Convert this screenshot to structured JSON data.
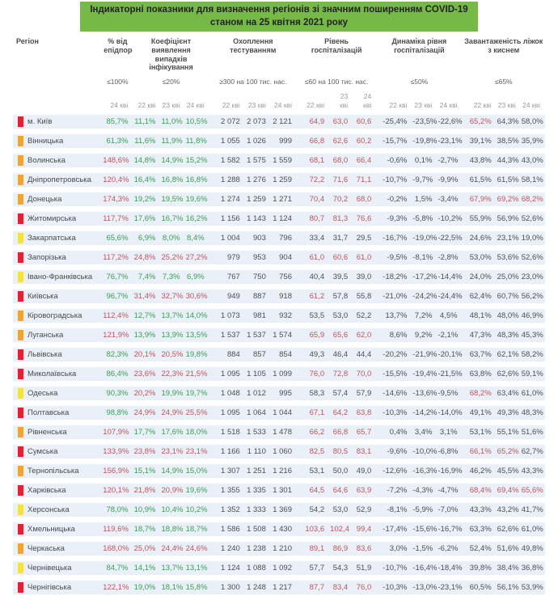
{
  "chart_data": {
    "type": "table",
    "title_line1": "Індикаторні показники для визначення регіонів зі значним поширенням COVID-19",
    "title_line2": "станом на 25 квітня 2021 року",
    "region_header": "Регіон",
    "groups": [
      {
        "key": "epid",
        "name": "% від епідпорогу",
        "threshold": "≤100%",
        "dates": [
          "24 кві"
        ]
      },
      {
        "key": "detect",
        "name": "Коефіцієнт виявлення випадків інфікування",
        "threshold": "≤20%",
        "dates": [
          "22 кві",
          "23 кві",
          "24 кві"
        ]
      },
      {
        "key": "testing",
        "name": "Охоплення тестуванням",
        "threshold": "≥300 на 100 тис. нас.",
        "dates": [
          "22 кві",
          "23 кві",
          "24 кві"
        ]
      },
      {
        "key": "hosp",
        "name": "Рівень госпіталізацій",
        "threshold": "≤60 на 100 тис. нас.",
        "dates": [
          "22 кві",
          "23 кві",
          "24 кві"
        ]
      },
      {
        "key": "dynamics",
        "name": "Динаміка рівня госпіталізацій",
        "threshold": "≤50%",
        "dates": [
          "22 кві",
          "23 кві",
          "24 кві"
        ]
      },
      {
        "key": "beds",
        "name": "Завантаженість ліжок з киснем",
        "threshold": "≤65%",
        "dates": [
          "22 кві",
          "23 кві",
          "24 кві"
        ]
      }
    ],
    "thresholds": {
      "epid": 100,
      "detect": 20,
      "hosp": 60,
      "beds": 65
    },
    "colors": {
      "green_value": "#3a9e52",
      "red_value": "#c4535c",
      "dark_value": "#4f4f4f",
      "marker_red": "#d9272e",
      "marker_orange": "#f2a33c",
      "marker_yellow": "#f5e04a",
      "stripe": "#e9f0f8",
      "title_bg": "#76b947"
    },
    "rows": [
      {
        "region": "м. Київ",
        "marker": "red",
        "epid": "85,7%",
        "detect": [
          "11,1%",
          "11,0%",
          "10,5%"
        ],
        "testing": [
          "2 072",
          "2 073",
          "2 121"
        ],
        "hosp": [
          "64,9",
          "63,0",
          "60,6"
        ],
        "dynamics": [
          "-25,4%",
          "-23,5%",
          "-22,6%"
        ],
        "beds": [
          "65,2%",
          "64,3%",
          "58,0%"
        ]
      },
      {
        "region": "Вінницька",
        "marker": "orange",
        "epid": "61,3%",
        "detect": [
          "11,6%",
          "11,9%",
          "11,8%"
        ],
        "testing": [
          "1 055",
          "1 026",
          "999"
        ],
        "hosp": [
          "66,8",
          "62,6",
          "60,2"
        ],
        "dynamics": [
          "-15,7%",
          "-19,8%",
          "-23,1%"
        ],
        "beds": [
          "39,1%",
          "38,5%",
          "35,9%"
        ]
      },
      {
        "region": "Волинська",
        "marker": "orange",
        "epid": "148,6%",
        "detect": [
          "14,8%",
          "14,9%",
          "15,2%"
        ],
        "testing": [
          "1 582",
          "1 575",
          "1 559"
        ],
        "hosp": [
          "68,1",
          "68,0",
          "66,4"
        ],
        "dynamics": [
          "-0,6%",
          "0,1%",
          "-2,7%"
        ],
        "beds": [
          "43,8%",
          "44,3%",
          "43,0%"
        ]
      },
      {
        "region": "Дніпропетровська",
        "marker": "orange",
        "epid": "120,4%",
        "detect": [
          "16,4%",
          "16,8%",
          "16,8%"
        ],
        "testing": [
          "1 288",
          "1 276",
          "1 259"
        ],
        "hosp": [
          "72,2",
          "71,6",
          "71,1"
        ],
        "dynamics": [
          "-10,7%",
          "-9,7%",
          "-9,9%"
        ],
        "beds": [
          "61,5%",
          "61,5%",
          "58,1%"
        ]
      },
      {
        "region": "Донецька",
        "marker": "orange",
        "epid": "174,3%",
        "detect": [
          "19,2%",
          "19,5%",
          "19,6%"
        ],
        "testing": [
          "1 274",
          "1 259",
          "1 271"
        ],
        "hosp": [
          "70,4",
          "70,2",
          "68,0"
        ],
        "dynamics": [
          "-0,2%",
          "1,5%",
          "-3,4%"
        ],
        "beds": [
          "67,9%",
          "69,2%",
          "68,2%"
        ]
      },
      {
        "region": "Житомирська",
        "marker": "red",
        "epid": "117,7%",
        "detect": [
          "17,6%",
          "16,7%",
          "16,2%"
        ],
        "testing": [
          "1 156",
          "1 143",
          "1 124"
        ],
        "hosp": [
          "80,7",
          "81,3",
          "76,6"
        ],
        "dynamics": [
          "-9,3%",
          "-5,8%",
          "-10,2%"
        ],
        "beds": [
          "55,9%",
          "56,9%",
          "52,6%"
        ]
      },
      {
        "region": "Закарпатська",
        "marker": "yellow",
        "epid": "65,6%",
        "detect": [
          "6,9%",
          "8,0%",
          "8,4%"
        ],
        "testing": [
          "1 004",
          "903",
          "796"
        ],
        "hosp": [
          "33,4",
          "31,7",
          "29,5"
        ],
        "dynamics": [
          "-16,7%",
          "-19,0%",
          "-22,5%"
        ],
        "beds": [
          "24,6%",
          "23,1%",
          "19,0%"
        ]
      },
      {
        "region": "Запорізька",
        "marker": "red",
        "epid": "117,2%",
        "detect": [
          "24,8%",
          "25,2%",
          "27,2%"
        ],
        "testing": [
          "979",
          "953",
          "904"
        ],
        "hosp": [
          "61,0",
          "60,6",
          "61,0"
        ],
        "dynamics": [
          "-9,5%",
          "-8,1%",
          "-2,8%"
        ],
        "beds": [
          "53,0%",
          "53,6%",
          "52,6%"
        ]
      },
      {
        "region": "Івано-Франківська",
        "marker": "yellow",
        "epid": "76,7%",
        "detect": [
          "7,4%",
          "7,3%",
          "6,9%"
        ],
        "testing": [
          "767",
          "750",
          "756"
        ],
        "hosp": [
          "40,4",
          "39,5",
          "39,0"
        ],
        "dynamics": [
          "-18,2%",
          "-17,2%",
          "-14,4%"
        ],
        "beds": [
          "24,0%",
          "25,0%",
          "23,0%"
        ]
      },
      {
        "region": "Київська",
        "marker": "red",
        "epid": "96,7%",
        "detect": [
          "31,4%",
          "32,7%",
          "30,6%"
        ],
        "testing": [
          "949",
          "887",
          "918"
        ],
        "hosp": [
          "61,2",
          "57,8",
          "55,8"
        ],
        "dynamics": [
          "-21,0%",
          "-24,2%",
          "-24,4%"
        ],
        "beds": [
          "62,4%",
          "60,7%",
          "56,2%"
        ]
      },
      {
        "region": "Кіровоградська",
        "marker": "orange",
        "epid": "112,4%",
        "detect": [
          "12,7%",
          "13,7%",
          "14,0%"
        ],
        "testing": [
          "1 073",
          "981",
          "932"
        ],
        "hosp": [
          "53,5",
          "53,0",
          "52,2"
        ],
        "dynamics": [
          "13,7%",
          "7,2%",
          "4,5%"
        ],
        "beds": [
          "48,1%",
          "48,0%",
          "46,9%"
        ]
      },
      {
        "region": "Луганська",
        "marker": "orange",
        "epid": "121,9%",
        "detect": [
          "13,9%",
          "13,9%",
          "13,5%"
        ],
        "testing": [
          "1 537",
          "1 537",
          "1 574"
        ],
        "hosp": [
          "65,9",
          "65,6",
          "62,0"
        ],
        "dynamics": [
          "8,6%",
          "9,2%",
          "-2,1%"
        ],
        "beds": [
          "47,3%",
          "48,3%",
          "45,3%"
        ]
      },
      {
        "region": "Львівська",
        "marker": "red",
        "epid": "82,3%",
        "detect": [
          "20,1%",
          "20,5%",
          "19,8%"
        ],
        "testing": [
          "884",
          "857",
          "854"
        ],
        "hosp": [
          "49,3",
          "46,4",
          "44,4"
        ],
        "dynamics": [
          "-20,2%",
          "-21,9%",
          "-20,1%"
        ],
        "beds": [
          "63,7%",
          "62,1%",
          "58,2%"
        ]
      },
      {
        "region": "Миколаївська",
        "marker": "red",
        "epid": "86,4%",
        "detect": [
          "23,6%",
          "22,3%",
          "21,5%"
        ],
        "testing": [
          "1 095",
          "1 105",
          "1 099"
        ],
        "hosp": [
          "76,0",
          "72,8",
          "70,0"
        ],
        "dynamics": [
          "-15,5%",
          "-19,4%",
          "-21,5%"
        ],
        "beds": [
          "63,8%",
          "62,6%",
          "59,1%"
        ]
      },
      {
        "region": "Одеська",
        "marker": "yellow",
        "epid": "90,3%",
        "detect": [
          "20,2%",
          "19,9%",
          "19,7%"
        ],
        "testing": [
          "1 048",
          "1 012",
          "995"
        ],
        "hosp": [
          "58,3",
          "57,4",
          "57,9"
        ],
        "dynamics": [
          "-14,6%",
          "-13,6%",
          "-9,5%"
        ],
        "beds": [
          "68,2%",
          "63,4%",
          "61,0%"
        ]
      },
      {
        "region": "Полтавська",
        "marker": "red",
        "epid": "98,8%",
        "detect": [
          "24,9%",
          "24,9%",
          "25,5%"
        ],
        "testing": [
          "1 095",
          "1 064",
          "1 044"
        ],
        "hosp": [
          "67,1",
          "64,2",
          "63,8"
        ],
        "dynamics": [
          "-10,3%",
          "-14,2%",
          "-14,0%"
        ],
        "beds": [
          "49,1%",
          "49,3%",
          "48,3%"
        ]
      },
      {
        "region": "Рівненська",
        "marker": "orange",
        "epid": "107,9%",
        "detect": [
          "17,7%",
          "17,6%",
          "18,0%"
        ],
        "testing": [
          "1 518",
          "1 533",
          "1 478"
        ],
        "hosp": [
          "66,2",
          "66,8",
          "65,7"
        ],
        "dynamics": [
          "0,4%",
          "3,4%",
          "3,1%"
        ],
        "beds": [
          "53,1%",
          "55,1%",
          "51,6%"
        ]
      },
      {
        "region": "Сумська",
        "marker": "red",
        "epid": "133,9%",
        "detect": [
          "23,8%",
          "23,1%",
          "23,1%"
        ],
        "testing": [
          "1 166",
          "1 110",
          "1 060"
        ],
        "hosp": [
          "82,5",
          "80,5",
          "83,1"
        ],
        "dynamics": [
          "-9,6%",
          "-10,0%",
          "-6,8%"
        ],
        "beds": [
          "66,1%",
          "65,2%",
          "62,7%"
        ]
      },
      {
        "region": "Тернопільська",
        "marker": "orange",
        "epid": "156,9%",
        "detect": [
          "15,1%",
          "14,9%",
          "15,0%"
        ],
        "testing": [
          "1 307",
          "1 251",
          "1 216"
        ],
        "hosp": [
          "53,1",
          "50,0",
          "49,0"
        ],
        "dynamics": [
          "-12,6%",
          "-16,3%",
          "-16,9%"
        ],
        "beds": [
          "46,2%",
          "45,5%",
          "43,3%"
        ]
      },
      {
        "region": "Харківська",
        "marker": "red",
        "epid": "120,1%",
        "detect": [
          "21,8%",
          "20,9%",
          "19,6%"
        ],
        "testing": [
          "1 355",
          "1 335",
          "1 301"
        ],
        "hosp": [
          "64,5",
          "64,6",
          "63,9"
        ],
        "dynamics": [
          "-7,2%",
          "-4,3%",
          "-4,7%"
        ],
        "beds": [
          "68,4%",
          "69,4%",
          "65,6%"
        ]
      },
      {
        "region": "Херсонська",
        "marker": "yellow",
        "epid": "78,0%",
        "detect": [
          "10,9%",
          "10,4%",
          "10,2%"
        ],
        "testing": [
          "1 352",
          "1 333",
          "1 369"
        ],
        "hosp": [
          "54,2",
          "53,0",
          "52,9"
        ],
        "dynamics": [
          "-8,1%",
          "-5,9%",
          "-7,0%"
        ],
        "beds": [
          "43,3%",
          "43,2%",
          "41,7%"
        ]
      },
      {
        "region": "Хмельницька",
        "marker": "red",
        "epid": "119,6%",
        "detect": [
          "18,7%",
          "18,8%",
          "18,7%"
        ],
        "testing": [
          "1 586",
          "1 508",
          "1 430"
        ],
        "hosp": [
          "103,6",
          "102,4",
          "99,4"
        ],
        "dynamics": [
          "-17,4%",
          "-15,6%",
          "-16,7%"
        ],
        "beds": [
          "63,3%",
          "62,6%",
          "61,0%"
        ]
      },
      {
        "region": "Черкаська",
        "marker": "orange",
        "epid": "168,0%",
        "detect": [
          "25,0%",
          "24,4%",
          "24,6%"
        ],
        "testing": [
          "1 240",
          "1 238",
          "1 210"
        ],
        "hosp": [
          "89,1",
          "86,9",
          "83,6"
        ],
        "dynamics": [
          "3,0%",
          "-1,5%",
          "-6,2%"
        ],
        "beds": [
          "52,4%",
          "51,6%",
          "49,8%"
        ]
      },
      {
        "region": "Чернівецька",
        "marker": "yellow",
        "epid": "84,7%",
        "detect": [
          "14,1%",
          "13,7%",
          "13,1%"
        ],
        "testing": [
          "1 124",
          "1 088",
          "1 092"
        ],
        "hosp": [
          "57,7",
          "54,3",
          "51,9"
        ],
        "dynamics": [
          "-10,7%",
          "-16,4%",
          "-18,4%"
        ],
        "beds": [
          "39,8%",
          "38,4%",
          "36,8%"
        ]
      },
      {
        "region": "Чернігівська",
        "marker": "red",
        "epid": "122,1%",
        "detect": [
          "19,0%",
          "18,1%",
          "15,8%"
        ],
        "testing": [
          "1 300",
          "1 248",
          "1 217"
        ],
        "hosp": [
          "87,7",
          "83,4",
          "76,0"
        ],
        "dynamics": [
          "-10,3%",
          "-13,0%",
          "-23,1%"
        ],
        "beds": [
          "60,5%",
          "56,1%",
          "53,9%"
        ]
      }
    ]
  }
}
